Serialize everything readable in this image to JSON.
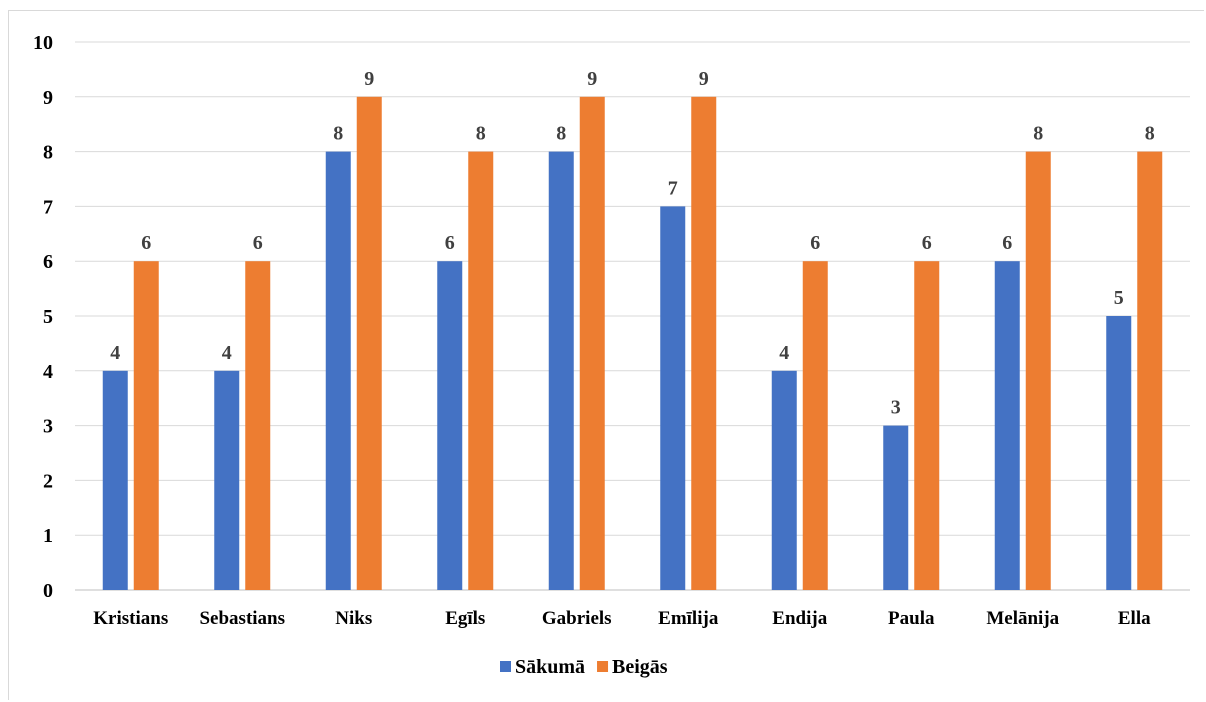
{
  "chart_data": {
    "type": "bar",
    "categories": [
      "Kristians",
      "Sebastians",
      "Niks",
      "Egīls",
      "Gabriels",
      "Emīlija",
      "Endija",
      "Paula",
      "Melānija",
      "Ella"
    ],
    "series": [
      {
        "name": "Sākumā",
        "values": [
          4,
          4,
          8,
          6,
          8,
          7,
          4,
          3,
          6,
          5
        ],
        "color": "#4472c4"
      },
      {
        "name": "Beigās",
        "values": [
          6,
          6,
          9,
          8,
          9,
          9,
          6,
          6,
          8,
          8
        ],
        "color": "#ed7d31"
      }
    ],
    "yticks": [
      "0",
      "1",
      "2",
      "3",
      "4",
      "5",
      "6",
      "7",
      "8",
      "9",
      "10"
    ],
    "ylim": [
      0,
      10
    ],
    "grid": true,
    "legend": "bottom",
    "data_labels": true,
    "title": "",
    "xlabel": "",
    "ylabel": ""
  }
}
